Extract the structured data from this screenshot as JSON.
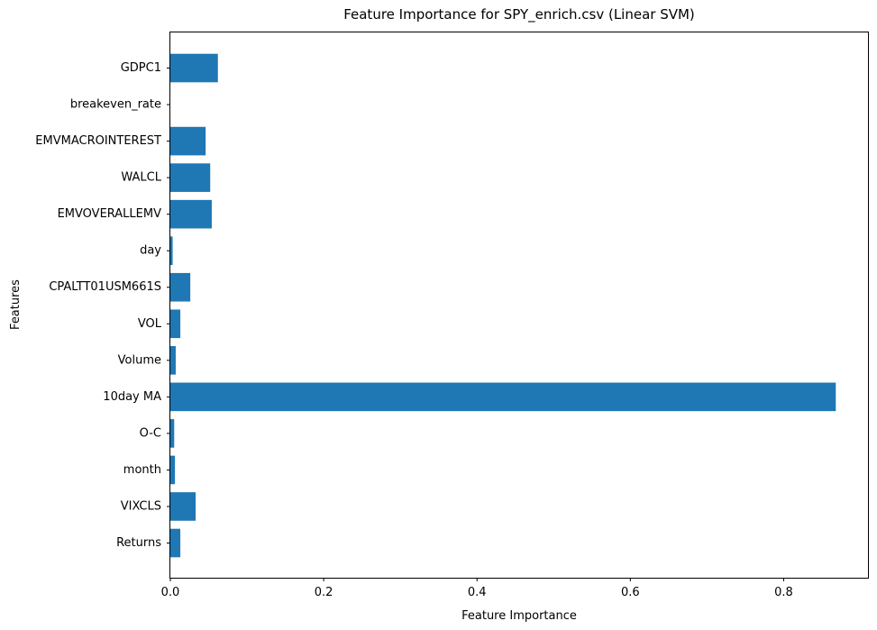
{
  "chart_data": {
    "type": "bar",
    "orientation": "horizontal",
    "title": "Feature Importance for SPY_enrich.csv (Linear SVM)",
    "xlabel": "Feature Importance",
    "ylabel": "Features",
    "categories": [
      "Returns",
      "VIXCLS",
      "month",
      "O-C",
      "10day MA",
      "Volume",
      "VOL",
      "CPALTT01USM661S",
      "day",
      "EMVOVERALLEMV",
      "WALCL",
      "EMVMACROINTEREST",
      "breakeven_rate",
      "GDPC1"
    ],
    "values": [
      0.013,
      0.033,
      0.006,
      0.005,
      0.868,
      0.007,
      0.013,
      0.026,
      0.003,
      0.054,
      0.052,
      0.046,
      0.0,
      0.062
    ],
    "xlim": [
      0,
      0.91
    ],
    "xticks": [
      0.0,
      0.2,
      0.4,
      0.6,
      0.8
    ],
    "xtick_labels": [
      "0.0",
      "0.2",
      "0.4",
      "0.6",
      "0.8"
    ],
    "grid": false,
    "bar_color": "#1f77b4"
  }
}
